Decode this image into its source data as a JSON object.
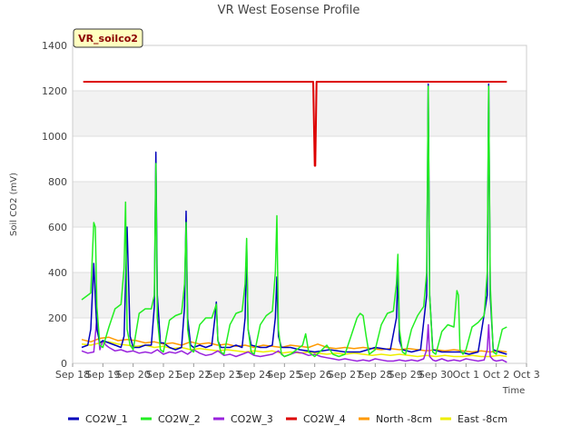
{
  "chart_data": {
    "type": "line",
    "title": "VR West Eosense Profile",
    "xlabel": "Time",
    "ylabel": "Soil CO2 (mV)",
    "ylim": [
      0,
      1400
    ],
    "yticks": [
      0,
      200,
      400,
      600,
      800,
      1000,
      1200,
      1400
    ],
    "xlim": [
      0,
      15
    ],
    "xticks": [
      {
        "x": 0,
        "label": "Sep 18"
      },
      {
        "x": 1,
        "label": "Sep 19"
      },
      {
        "x": 2,
        "label": "Sep 20"
      },
      {
        "x": 3,
        "label": "Sep 21"
      },
      {
        "x": 4,
        "label": "Sep 22"
      },
      {
        "x": 5,
        "label": "Sep 23"
      },
      {
        "x": 6,
        "label": "Sep 24"
      },
      {
        "x": 7,
        "label": "Sep 25"
      },
      {
        "x": 8,
        "label": "Sep 26"
      },
      {
        "x": 9,
        "label": "Sep 27"
      },
      {
        "x": 10,
        "label": "Sep 28"
      },
      {
        "x": 11,
        "label": "Sep 29"
      },
      {
        "x": 12,
        "label": "Sep 30"
      },
      {
        "x": 13,
        "label": "Oct 1"
      },
      {
        "x": 14,
        "label": "Oct 2"
      },
      {
        "x": 15,
        "label": "Oct 3"
      }
    ],
    "annotation": "VR_soilco2",
    "grid": true,
    "legend_position": "bottom",
    "series": [
      {
        "name": "CO2W_4",
        "color": "#dd0000",
        "x": [
          0.35,
          7.95,
          8.0,
          8.02,
          8.06,
          8.1,
          14.35
        ],
        "y": [
          1240,
          1240,
          870,
          870,
          1240,
          1240,
          1240
        ]
      },
      {
        "name": "CO2W_1",
        "color": "#0000bb",
        "x": [
          0.3,
          0.5,
          0.6,
          0.7,
          0.8,
          0.9,
          1.0,
          1.2,
          1.4,
          1.6,
          1.7,
          1.8,
          1.9,
          2.0,
          2.2,
          2.4,
          2.6,
          2.7,
          2.75,
          2.8,
          2.9,
          3.0,
          3.2,
          3.4,
          3.6,
          3.7,
          3.75,
          3.8,
          3.9,
          4.0,
          4.2,
          4.4,
          4.6,
          4.7,
          4.75,
          4.8,
          4.9,
          5.2,
          5.4,
          5.6,
          5.7,
          5.75,
          5.8,
          5.9,
          6.2,
          6.4,
          6.6,
          6.7,
          6.75,
          6.8,
          6.9,
          7.2,
          7.5,
          8.0,
          8.5,
          9.0,
          9.5,
          10.0,
          10.5,
          10.7,
          10.75,
          10.8,
          10.9,
          11.2,
          11.5,
          11.7,
          11.75,
          11.8,
          11.9,
          12.2,
          12.5,
          12.8,
          13.1,
          13.4,
          13.7,
          13.75,
          13.8,
          13.9,
          14.1,
          14.35
        ],
        "y": [
          70,
          80,
          150,
          440,
          150,
          90,
          100,
          90,
          80,
          70,
          120,
          600,
          120,
          70,
          70,
          80,
          80,
          250,
          930,
          300,
          90,
          90,
          70,
          60,
          70,
          250,
          670,
          200,
          80,
          70,
          80,
          70,
          80,
          200,
          270,
          100,
          70,
          70,
          80,
          70,
          200,
          520,
          150,
          80,
          70,
          70,
          80,
          200,
          380,
          120,
          70,
          70,
          60,
          50,
          60,
          50,
          50,
          70,
          60,
          200,
          400,
          100,
          60,
          50,
          60,
          300,
          1230,
          300,
          60,
          50,
          50,
          50,
          40,
          50,
          300,
          1230,
          300,
          60,
          50,
          40
        ]
      },
      {
        "name": "CO2W_2",
        "color": "#22ee22",
        "x": [
          0.3,
          0.5,
          0.6,
          0.7,
          0.75,
          0.8,
          0.9,
          1.0,
          1.2,
          1.4,
          1.6,
          1.7,
          1.75,
          1.8,
          1.9,
          2.0,
          2.2,
          2.4,
          2.6,
          2.7,
          2.75,
          2.8,
          2.9,
          3.0,
          3.2,
          3.4,
          3.6,
          3.7,
          3.75,
          3.8,
          3.9,
          4.0,
          4.2,
          4.4,
          4.6,
          4.7,
          4.75,
          4.8,
          4.9,
          5.0,
          5.2,
          5.4,
          5.6,
          5.7,
          5.75,
          5.8,
          5.9,
          6.0,
          6.2,
          6.4,
          6.6,
          6.7,
          6.75,
          6.8,
          6.9,
          7.0,
          7.2,
          7.4,
          7.6,
          7.7,
          7.8,
          8.0,
          8.4,
          8.6,
          8.8,
          9.0,
          9.2,
          9.4,
          9.5,
          9.6,
          9.7,
          9.8,
          10.0,
          10.2,
          10.4,
          10.6,
          10.7,
          10.75,
          10.8,
          10.9,
          11.0,
          11.2,
          11.4,
          11.5,
          11.6,
          11.7,
          11.75,
          11.8,
          11.9,
          12.0,
          12.2,
          12.4,
          12.6,
          12.7,
          12.75,
          12.8,
          12.9,
          13.0,
          13.2,
          13.4,
          13.6,
          13.7,
          13.75,
          13.8,
          13.9,
          14.0,
          14.2,
          14.35
        ],
        "y": [
          280,
          300,
          310,
          620,
          600,
          250,
          80,
          70,
          160,
          240,
          260,
          420,
          710,
          150,
          80,
          60,
          220,
          240,
          240,
          300,
          880,
          200,
          60,
          50,
          190,
          210,
          220,
          350,
          620,
          150,
          60,
          50,
          170,
          200,
          200,
          240,
          260,
          100,
          50,
          40,
          170,
          220,
          230,
          350,
          550,
          150,
          50,
          40,
          170,
          210,
          230,
          400,
          650,
          150,
          40,
          30,
          40,
          60,
          80,
          130,
          50,
          30,
          80,
          40,
          30,
          40,
          120,
          200,
          220,
          210,
          120,
          40,
          60,
          170,
          220,
          230,
          350,
          480,
          150,
          50,
          40,
          150,
          210,
          230,
          250,
          400,
          1220,
          300,
          50,
          40,
          140,
          170,
          160,
          320,
          300,
          60,
          40,
          60,
          160,
          180,
          210,
          400,
          1220,
          350,
          50,
          40,
          150,
          160
        ]
      },
      {
        "name": "CO2W_3",
        "color": "#9922dd",
        "x": [
          0.3,
          0.5,
          0.7,
          0.8,
          0.9,
          1.0,
          1.1,
          1.2,
          1.4,
          1.6,
          1.8,
          2.0,
          2.2,
          2.4,
          2.6,
          2.8,
          3.0,
          3.2,
          3.4,
          3.6,
          3.8,
          4.0,
          4.2,
          4.4,
          4.6,
          4.8,
          5.0,
          5.2,
          5.4,
          5.6,
          5.8,
          6.0,
          6.2,
          6.4,
          6.6,
          6.8,
          7.0,
          7.2,
          7.4,
          7.6,
          7.8,
          8.0,
          8.2,
          8.4,
          8.6,
          8.8,
          9.0,
          9.2,
          9.4,
          9.6,
          9.8,
          10.0,
          10.2,
          10.4,
          10.6,
          10.8,
          11.0,
          11.2,
          11.4,
          11.6,
          11.7,
          11.75,
          11.8,
          11.9,
          12.0,
          12.2,
          12.4,
          12.6,
          12.8,
          13.0,
          13.2,
          13.4,
          13.6,
          13.7,
          13.75,
          13.8,
          13.9,
          14.0,
          14.2,
          14.35
        ],
        "y": [
          55,
          45,
          50,
          200,
          60,
          100,
          80,
          70,
          55,
          60,
          50,
          55,
          45,
          50,
          45,
          60,
          40,
          50,
          45,
          55,
          40,
          60,
          45,
          35,
          40,
          55,
          35,
          40,
          30,
          40,
          50,
          35,
          30,
          35,
          40,
          55,
          30,
          40,
          50,
          45,
          35,
          40,
          30,
          25,
          20,
          15,
          20,
          15,
          10,
          15,
          10,
          20,
          15,
          10,
          10,
          15,
          10,
          15,
          10,
          20,
          60,
          170,
          30,
          15,
          10,
          20,
          10,
          15,
          10,
          20,
          15,
          10,
          15,
          60,
          170,
          30,
          15,
          10,
          15,
          5
        ]
      },
      {
        "name": "North -8cm",
        "color": "#ff9900",
        "x": [
          0.3,
          0.6,
          0.9,
          1.2,
          1.5,
          1.8,
          2.1,
          2.4,
          2.7,
          3.0,
          3.3,
          3.6,
          3.9,
          4.2,
          4.5,
          4.8,
          5.1,
          5.4,
          5.7,
          6.0,
          6.3,
          6.6,
          6.9,
          7.2,
          7.5,
          7.8,
          8.1,
          8.4,
          8.7,
          9.0,
          9.3,
          9.6,
          9.9,
          10.2,
          10.5,
          10.8,
          11.1,
          11.4,
          11.7,
          12.0,
          12.3,
          12.6,
          12.9,
          13.2,
          13.5,
          13.8,
          14.1,
          14.35
        ],
        "y": [
          105,
          95,
          110,
          115,
          100,
          105,
          100,
          90,
          95,
          85,
          90,
          80,
          95,
          85,
          90,
          80,
          85,
          75,
          80,
          70,
          80,
          75,
          70,
          80,
          75,
          70,
          85,
          70,
          65,
          70,
          65,
          70,
          65,
          60,
          65,
          60,
          65,
          60,
          55,
          60,
          55,
          60,
          55,
          50,
          55,
          50,
          55,
          50
        ]
      },
      {
        "name": "East -8cm",
        "color": "#eeee00",
        "x": [
          0.3,
          0.6,
          0.9,
          1.2,
          1.5,
          1.8,
          2.1,
          2.4,
          2.7,
          3.0,
          3.3,
          3.6,
          3.9,
          4.2,
          4.5,
          4.8,
          5.1,
          5.4,
          5.7,
          6.0,
          6.3,
          6.6,
          6.9,
          7.2,
          7.5,
          7.8,
          8.1,
          8.4,
          8.7,
          9.0,
          9.3,
          9.6,
          9.9,
          10.2,
          10.5,
          10.8,
          11.1,
          11.4,
          11.7,
          12.0,
          12.3,
          12.6,
          12.9,
          13.2,
          13.5,
          13.8,
          14.1,
          14.35
        ],
        "y": [
          85,
          80,
          90,
          95,
          85,
          80,
          75,
          80,
          70,
          75,
          65,
          70,
          60,
          65,
          60,
          55,
          60,
          55,
          50,
          55,
          50,
          55,
          45,
          50,
          45,
          50,
          45,
          40,
          45,
          40,
          45,
          40,
          35,
          40,
          35,
          40,
          35,
          30,
          35,
          30,
          35,
          30,
          30,
          35,
          30,
          30,
          35,
          30
        ]
      }
    ]
  }
}
